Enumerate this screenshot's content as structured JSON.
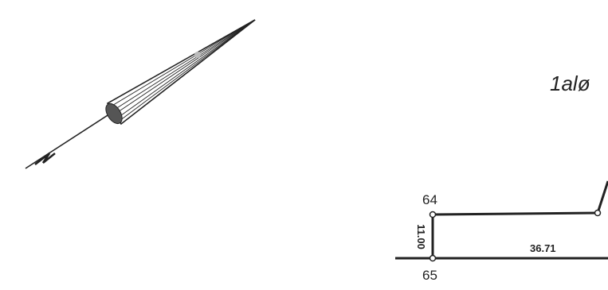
{
  "north_arrow": {
    "label": "N",
    "icon": "north-arrow-icon"
  },
  "lot": {
    "label": "1alø"
  },
  "points": [
    {
      "id": "p64",
      "label": "64"
    },
    {
      "id": "p65",
      "label": "65"
    }
  ],
  "dimensions": {
    "vertical": "11.00",
    "horizontal": "36.71"
  },
  "colors": {
    "ink": "#222222",
    "paper": "#ffffff",
    "shade": "#555555",
    "highlight": "#bbbbbb"
  }
}
